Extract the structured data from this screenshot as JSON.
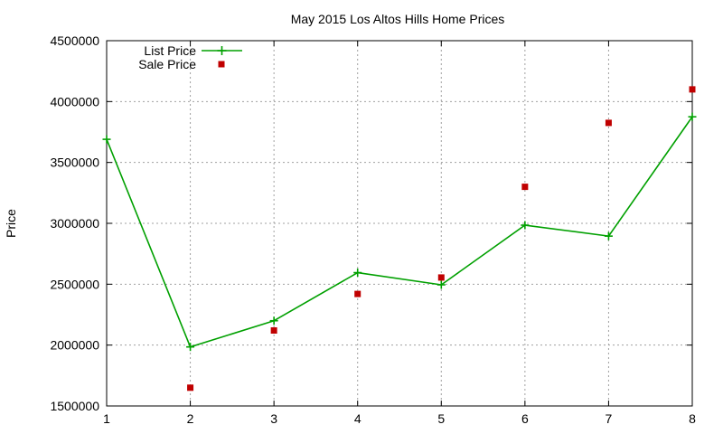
{
  "chart_data": {
    "type": "line",
    "title": "May 2015 Los Altos Hills Home Prices",
    "xlabel": "",
    "ylabel": "Price",
    "x": [
      1,
      2,
      3,
      4,
      5,
      6,
      7,
      8
    ],
    "xlim": [
      1,
      8
    ],
    "ylim": [
      1500000,
      4500000
    ],
    "xticks": [
      "1",
      "2",
      "3",
      "4",
      "5",
      "6",
      "7",
      "8"
    ],
    "yticks": [
      "1500000",
      "2000000",
      "2500000",
      "3000000",
      "3500000",
      "4000000",
      "4500000"
    ],
    "grid": true,
    "legend_position": "top-left",
    "series": [
      {
        "name": "List Price",
        "style": "line-with-plus-markers",
        "color": "#00a000",
        "values": [
          3690000,
          1985000,
          2200000,
          2595000,
          2495000,
          2985000,
          2895000,
          3875000
        ]
      },
      {
        "name": "Sale Price",
        "style": "square-markers",
        "color": "#c00000",
        "values": [
          null,
          1650000,
          2120000,
          2420000,
          2555000,
          3300000,
          3825000,
          4100000
        ]
      }
    ]
  }
}
